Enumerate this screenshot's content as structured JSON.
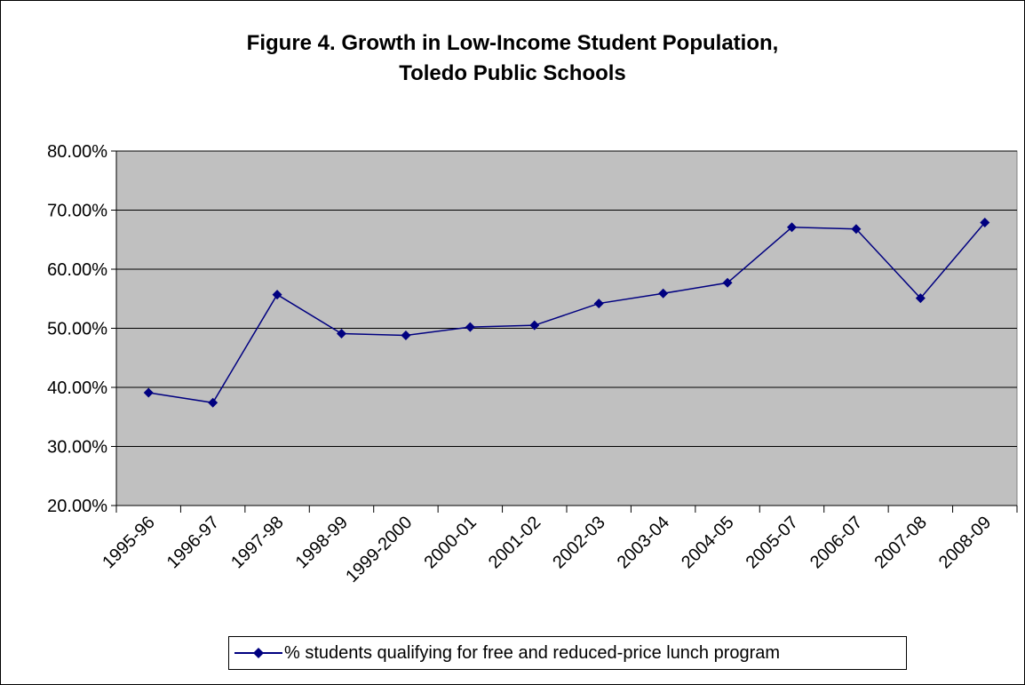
{
  "chart_data": {
    "type": "line",
    "title": "Figure 4. Growth in Low-Income Student Population,",
    "subtitle": "Toledo Public Schools",
    "categories": [
      "1995-96",
      "1996-97",
      "1997-98",
      "1998-99",
      "1999-2000",
      "2000-01",
      "2001-02",
      "2002-03",
      "2003-04",
      "2004-05",
      "2005-07",
      "2006-07",
      "2007-08",
      "2008-09"
    ],
    "series": [
      {
        "name": "% students qualifying for free and reduced-price lunch program",
        "values": [
          39.1,
          37.4,
          55.7,
          49.1,
          48.8,
          50.2,
          50.5,
          54.2,
          55.9,
          57.7,
          67.1,
          66.8,
          55.1,
          67.9
        ],
        "color": "#000080",
        "marker": "diamond"
      }
    ],
    "ylim": [
      20,
      80
    ],
    "yticks": [
      20,
      30,
      40,
      50,
      60,
      70,
      80
    ],
    "ytick_labels": [
      "20.00%",
      "30.00%",
      "40.00%",
      "50.00%",
      "60.00%",
      "70.00%",
      "80.00%"
    ],
    "grid": true,
    "plot_background": "#c0c0c0",
    "legend_position": "bottom"
  }
}
